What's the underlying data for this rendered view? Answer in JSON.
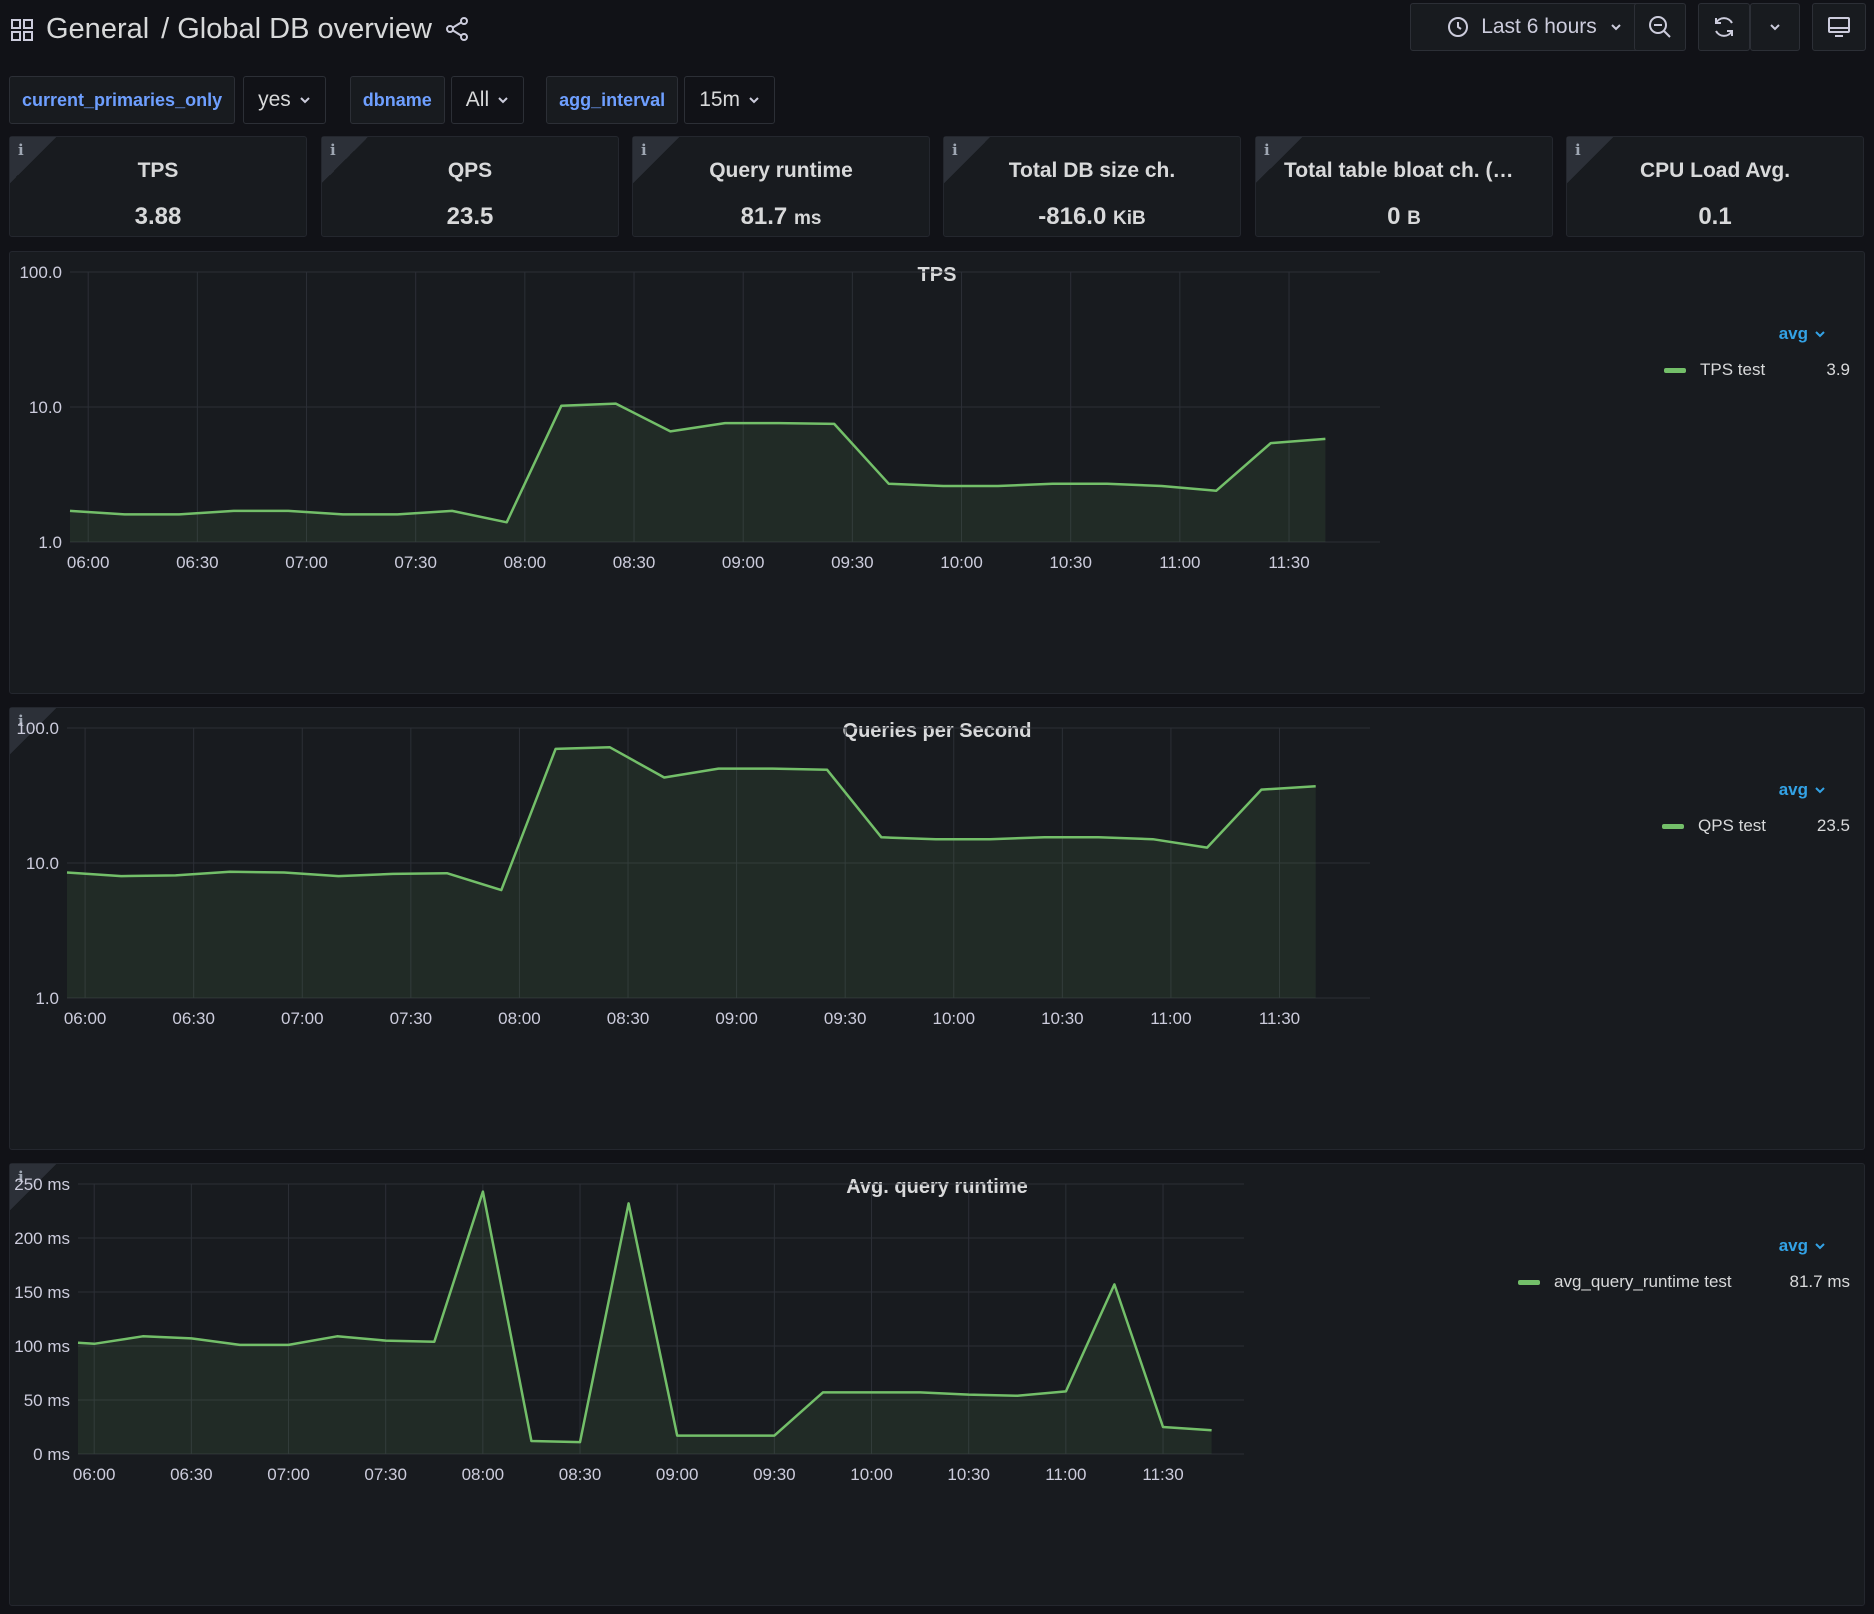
{
  "breadcrumb": {
    "folder": "General",
    "separator": "/",
    "title": "Global DB overview"
  },
  "toolbar": {
    "time_range": "Last 6 hours"
  },
  "variables": [
    {
      "label": "current_primaries_only",
      "value": "yes"
    },
    {
      "label": "dbname",
      "value": "All"
    },
    {
      "label": "agg_interval",
      "value": "15m"
    }
  ],
  "stats": [
    {
      "title": "TPS",
      "value": "3.88",
      "unit": ""
    },
    {
      "title": "QPS",
      "value": "23.5",
      "unit": ""
    },
    {
      "title": "Query runtime",
      "value": "81.7",
      "unit": "ms"
    },
    {
      "title": "Total DB size ch.",
      "value": "-816.0",
      "unit": "KiB"
    },
    {
      "title": "Total table bloat ch. (ap...",
      "value": "0",
      "unit": "B"
    },
    {
      "title": "CPU Load Avg.",
      "value": "0.1",
      "unit": ""
    }
  ],
  "panels": [
    {
      "title": "TPS",
      "legend_calc": "avg",
      "legend_name": "TPS test",
      "legend_value": "3.9"
    },
    {
      "title": "Queries per Second",
      "legend_calc": "avg",
      "legend_name": "QPS test",
      "legend_value": "23.5"
    },
    {
      "title": "Avg. query runtime",
      "legend_calc": "avg",
      "legend_name": "avg_query_runtime test",
      "legend_value": "81.7 ms"
    }
  ],
  "colors": {
    "series": "#73bf69",
    "legend_calc": "#33a2e5",
    "variable_label": "#6e9fff"
  },
  "chart_data": [
    {
      "type": "area",
      "title": "TPS",
      "yscale": "log",
      "yticks": [
        "1.0",
        "10.0",
        "100.0"
      ],
      "ylim": [
        1,
        100
      ],
      "x_tick_labels": [
        "06:00",
        "06:30",
        "07:00",
        "07:30",
        "08:00",
        "08:30",
        "09:00",
        "09:30",
        "10:00",
        "10:30",
        "11:00",
        "11:30"
      ],
      "xlim": [
        "05:55",
        "11:55"
      ],
      "series": [
        {
          "name": "TPS test",
          "x": [
            "05:55",
            "06:10",
            "06:25",
            "06:40",
            "06:55",
            "07:10",
            "07:25",
            "07:40",
            "07:55",
            "08:10",
            "08:25",
            "08:40",
            "08:55",
            "09:10",
            "09:25",
            "09:40",
            "09:55",
            "10:10",
            "10:25",
            "10:40",
            "10:55",
            "11:10",
            "11:25",
            "11:40"
          ],
          "values": [
            1.7,
            1.6,
            1.6,
            1.7,
            1.7,
            1.6,
            1.6,
            1.7,
            1.4,
            10.2,
            10.6,
            6.6,
            7.6,
            7.6,
            7.5,
            2.7,
            2.6,
            2.6,
            2.7,
            2.7,
            2.6,
            2.4,
            5.4,
            5.8
          ]
        }
      ],
      "grid": true
    },
    {
      "type": "area",
      "title": "Queries per Second",
      "yscale": "log",
      "yticks": [
        "1.0",
        "10.0",
        "100.0"
      ],
      "ylim": [
        1,
        100
      ],
      "x_tick_labels": [
        "06:00",
        "06:30",
        "07:00",
        "07:30",
        "08:00",
        "08:30",
        "09:00",
        "09:30",
        "10:00",
        "10:30",
        "11:00",
        "11:30"
      ],
      "xlim": [
        "05:55",
        "11:55"
      ],
      "series": [
        {
          "name": "QPS test",
          "x": [
            "05:55",
            "06:10",
            "06:25",
            "06:40",
            "06:55",
            "07:10",
            "07:25",
            "07:40",
            "07:55",
            "08:10",
            "08:25",
            "08:40",
            "08:55",
            "09:10",
            "09:25",
            "09:40",
            "09:55",
            "10:10",
            "10:25",
            "10:40",
            "10:55",
            "11:10",
            "11:25",
            "11:40"
          ],
          "values": [
            8.5,
            8.0,
            8.1,
            8.6,
            8.5,
            8.0,
            8.3,
            8.4,
            6.3,
            70,
            72,
            43,
            50,
            50,
            49,
            15.5,
            15,
            15,
            15.5,
            15.5,
            15,
            13,
            35,
            37
          ]
        }
      ],
      "grid": true
    },
    {
      "type": "area",
      "title": "Avg. query runtime",
      "yscale": "linear",
      "yticks": [
        "0 ms",
        "50 ms",
        "100 ms",
        "150 ms",
        "200 ms",
        "250 ms"
      ],
      "ylim": [
        0,
        250
      ],
      "x_tick_labels": [
        "06:00",
        "06:30",
        "07:00",
        "07:30",
        "08:00",
        "08:30",
        "09:00",
        "09:30",
        "10:00",
        "10:30",
        "11:00",
        "11:30"
      ],
      "xlim": [
        "05:55",
        "11:55"
      ],
      "series": [
        {
          "name": "avg_query_runtime test",
          "x": [
            "05:55",
            "06:00",
            "06:15",
            "06:30",
            "06:45",
            "07:00",
            "07:15",
            "07:30",
            "07:45",
            "08:00",
            "08:15",
            "08:30",
            "08:45",
            "09:00",
            "09:15",
            "09:30",
            "09:45",
            "10:00",
            "10:15",
            "10:30",
            "10:45",
            "11:00",
            "11:15",
            "11:30",
            "11:45"
          ],
          "values": [
            103,
            102,
            109,
            107,
            101,
            101,
            109,
            105,
            104,
            243,
            12,
            11,
            232,
            17,
            17,
            17,
            57,
            57,
            57,
            55,
            54,
            58,
            157,
            25,
            22
          ]
        }
      ],
      "grid": true
    }
  ]
}
